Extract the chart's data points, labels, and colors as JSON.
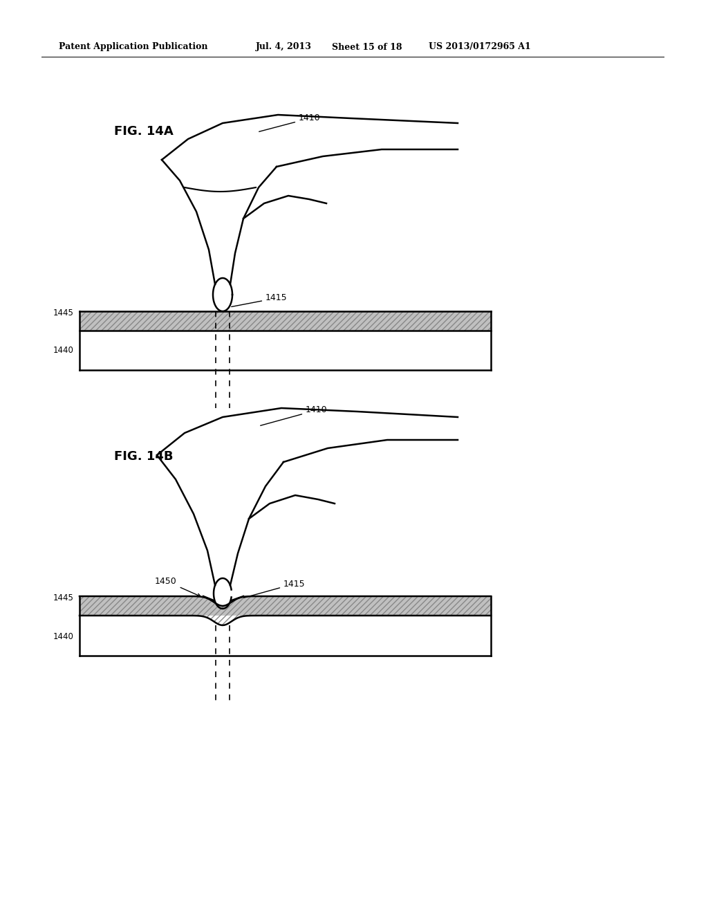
{
  "background_color": "#ffffff",
  "header_text": "Patent Application Publication",
  "header_date": "Jul. 4, 2013",
  "header_sheet": "Sheet 15 of 18",
  "header_patent": "US 2013/0172965 A1",
  "fig_14a_label": "FIG. 14A",
  "fig_14b_label": "FIG. 14B",
  "label_1410": "1410",
  "label_1415": "1415",
  "label_1440": "1440",
  "label_1445": "1445",
  "label_1450": "1450",
  "line_color": "#000000",
  "fill_color": "#cccccc",
  "lw": 1.8
}
